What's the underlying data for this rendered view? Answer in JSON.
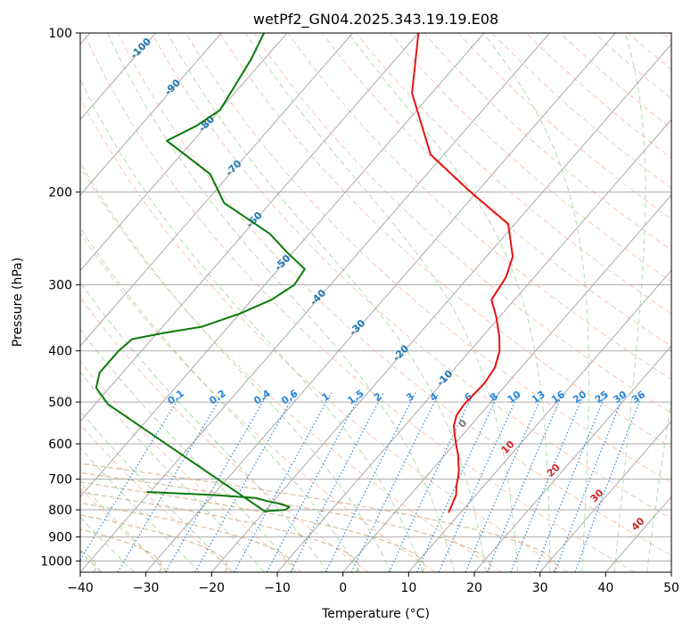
{
  "chart_data": {
    "type": "line",
    "diagram": "skew-T log-p",
    "title": "wetPf2_GN04.2025.343.19.19.E08",
    "xlabel": "Temperature (°C)",
    "ylabel": "Pressure (hPa)",
    "xlim": [
      -40,
      50
    ],
    "ylim": [
      1050,
      100
    ],
    "y_scale": "log",
    "y_inverted": true,
    "skew_deg_per_decade": 70,
    "x_ticks": [
      -40,
      -30,
      -20,
      -10,
      0,
      10,
      20,
      30,
      40,
      50
    ],
    "x_tick_labels": [
      "−40",
      "−30",
      "−20",
      "−10",
      "0",
      "10",
      "20",
      "30",
      "40",
      "50"
    ],
    "y_ticks": [
      100,
      200,
      300,
      400,
      500,
      600,
      700,
      800,
      900,
      1000
    ],
    "y_tick_labels": [
      "100",
      "200",
      "300",
      "400",
      "500",
      "600",
      "700",
      "800",
      "900",
      "1000"
    ],
    "grid": true,
    "colors": {
      "temperature": "#e81313",
      "moisture": "#0b7a0b",
      "dry_adiabats": "#f4a182",
      "moist_adiabats": "#7cc47c",
      "mixing_ratio": "#2b86d8",
      "isotherms": "#aaaaaa",
      "saturation_curves": "#c9a57a",
      "label_blue": "#1f77b4",
      "label_red": "#d62728"
    },
    "series": [
      {
        "role": "temperature",
        "x": [
          8.2,
          7.6,
          7.0,
          5.8,
          4.8,
          4.0,
          3.0,
          2.0,
          0.5,
          -1.0,
          -2.5,
          -3.5,
          -3.8,
          -3.7,
          -3.5,
          -4.0,
          -5.5,
          -7.5,
          -10.5,
          -13.5,
          -14.3,
          -16.0,
          -21.0,
          -31.0,
          -42.0,
          -53.0,
          -60.0
        ],
        "y": [
          810,
          780,
          750,
          720,
          690,
          670,
          650,
          630,
          605,
          580,
          555,
          530,
          505,
          490,
          460,
          430,
          400,
          375,
          345,
          320,
          290,
          265,
          230,
          200,
          170,
          130,
          100
        ]
      },
      {
        "role": "moisture",
        "x": [
          -40.5,
          -30.0,
          -23.0,
          -21.0,
          -18.5,
          -16.8,
          -17.0,
          -20.0,
          -58.0,
          -62.0,
          -63.5,
          -63.5,
          -63.0,
          -59.0,
          -54.0,
          -50.0,
          -47.0,
          -45.5,
          -46.0,
          -51.0,
          -56.0,
          -67.0,
          -73.0,
          -84.0,
          -81.5,
          -80.0,
          -81.0,
          -82.0,
          -83.5
        ],
        "y": [
          740,
          750,
          760,
          770,
          780,
          790,
          800,
          805,
          505,
          470,
          440,
          400,
          380,
          370,
          360,
          340,
          320,
          300,
          280,
          260,
          240,
          210,
          185,
          160,
          150,
          140,
          125,
          112,
          100
        ]
      }
    ],
    "mixing_ratio_labels": [
      "0.1",
      "0.2",
      "0.4",
      "0.6",
      "1",
      "1.5",
      "2",
      "3",
      "4",
      "6",
      "8",
      "10",
      "13",
      "16",
      "20",
      "25",
      "30",
      "36"
    ],
    "dry_adiabat_labels": [
      "-100",
      "-90",
      "-80",
      "-70",
      "-60",
      "-50",
      "-40",
      "-30",
      "-20",
      "-10"
    ],
    "moist_adiabat_labels": [
      "0",
      "10",
      "20",
      "30",
      "40"
    ]
  }
}
